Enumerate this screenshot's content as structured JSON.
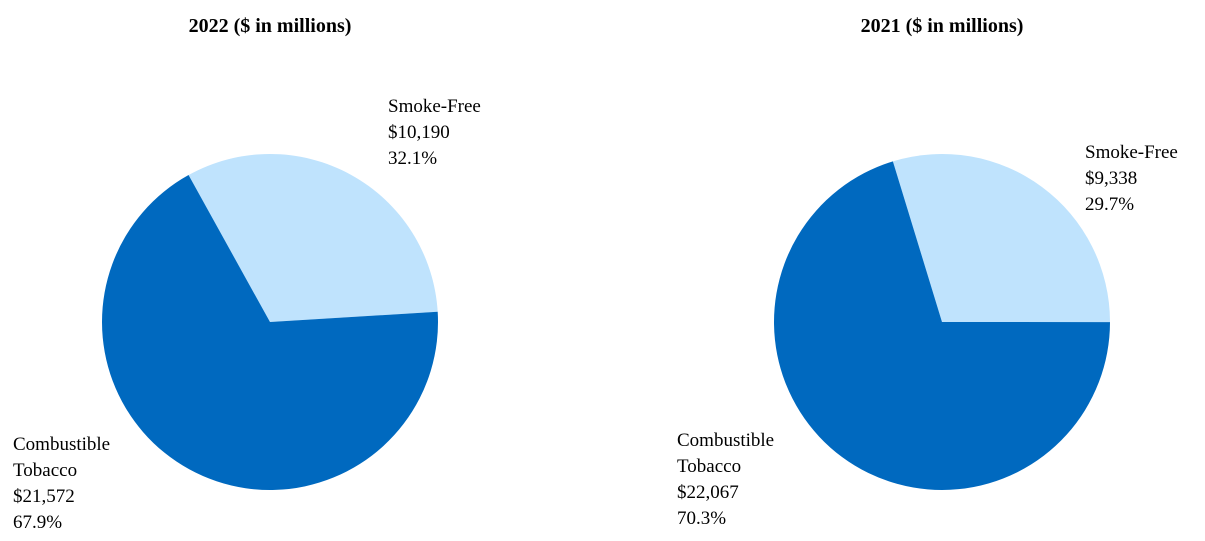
{
  "colors": {
    "smoke_free": "#bfe3fd",
    "combustible": "#0069bf"
  },
  "chart_data": [
    {
      "type": "pie",
      "title": "2022 ($ in millions)",
      "slices": [
        {
          "key": "smoke_free",
          "lines": [
            "Smoke-Free",
            "$10,190",
            "32.1%"
          ],
          "value": 10190,
          "percent": 32.1,
          "color": "#bfe3fd"
        },
        {
          "key": "combustible",
          "lines": [
            "Combustible",
            "Tobacco",
            "$21,572",
            "67.9%"
          ],
          "value": 21572,
          "percent": 67.9,
          "color": "#0069bf"
        }
      ]
    },
    {
      "type": "pie",
      "title": "2021 ($ in millions)",
      "slices": [
        {
          "key": "smoke_free",
          "lines": [
            "Smoke-Free",
            "$9,338",
            "29.7%"
          ],
          "value": 9338,
          "percent": 29.7,
          "color": "#bfe3fd"
        },
        {
          "key": "combustible",
          "lines": [
            "Combustible",
            "Tobacco",
            "$22,067",
            "70.3%"
          ],
          "value": 22067,
          "percent": 70.3,
          "color": "#0069bf"
        }
      ]
    }
  ]
}
